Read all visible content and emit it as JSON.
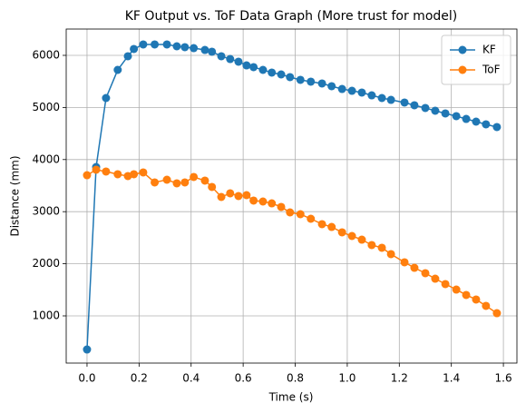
{
  "chart_data": {
    "type": "line",
    "title": "KF Output vs. ToF Data Graph (More trust for model)",
    "xlabel": "Time (s)",
    "ylabel": "Distance (mm)",
    "x": [
      0,
      0.035,
      0.073,
      0.118,
      0.157,
      0.18,
      0.216,
      0.26,
      0.307,
      0.345,
      0.376,
      0.41,
      0.453,
      0.48,
      0.516,
      0.55,
      0.582,
      0.613,
      0.64,
      0.676,
      0.71,
      0.746,
      0.78,
      0.82,
      0.86,
      0.903,
      0.94,
      0.98,
      1.018,
      1.056,
      1.094,
      1.133,
      1.168,
      1.22,
      1.258,
      1.3,
      1.338,
      1.377,
      1.419,
      1.457,
      1.495,
      1.533,
      1.575
    ],
    "series": [
      {
        "name": "KF",
        "color": "#1f77b4",
        "values": [
          355,
          3857,
          5181,
          5721,
          5983,
          6122,
          6209,
          6209,
          6209,
          6174,
          6157,
          6139,
          6104,
          6070,
          5983,
          5930,
          5878,
          5808,
          5774,
          5721,
          5669,
          5634,
          5582,
          5530,
          5495,
          5460,
          5408,
          5355,
          5320,
          5286,
          5233,
          5181,
          5146,
          5094,
          5042,
          4990,
          4937,
          4885,
          4833,
          4780,
          4728,
          4676,
          4624
        ]
      },
      {
        "name": "ToF",
        "color": "#ff7f0e",
        "values": [
          3700,
          3805,
          3770,
          3718,
          3683,
          3718,
          3753,
          3561,
          3613,
          3544,
          3561,
          3666,
          3596,
          3474,
          3282,
          3352,
          3300,
          3317,
          3213,
          3195,
          3160,
          3091,
          2986,
          2951,
          2864,
          2760,
          2707,
          2603,
          2533,
          2463,
          2359,
          2307,
          2185,
          2028,
          1923,
          1819,
          1714,
          1610,
          1505,
          1401,
          1314,
          1192,
          1052
        ]
      }
    ],
    "xlim": [
      -0.08,
      1.652
    ],
    "xticks": [
      {
        "value": 0,
        "label": "0.0"
      },
      0.2,
      0.4,
      0.6,
      0.8,
      {
        "value": 1,
        "label": "1.0"
      },
      1.2,
      1.4,
      1.6
    ],
    "ylim": [
      94,
      6505
    ],
    "yticks": [
      1000,
      2000,
      3000,
      4000,
      5000,
      6000
    ],
    "grid": true,
    "legend": "upper right"
  }
}
